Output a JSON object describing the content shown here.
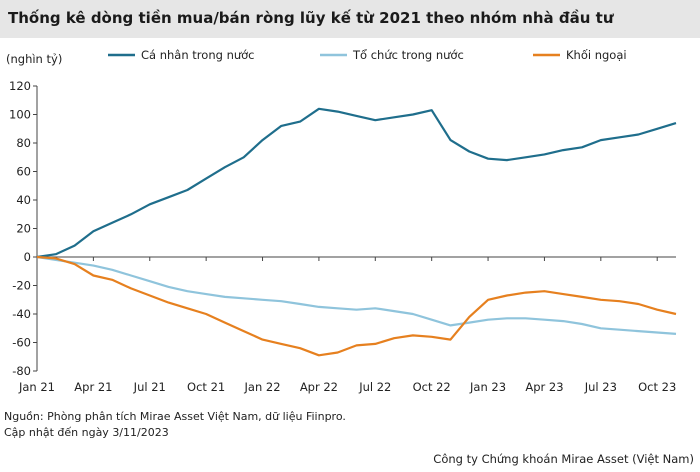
{
  "chart_data": {
    "type": "line",
    "title": "Thống kê dòng tiền mua/bán ròng lũy kế từ 2021 theo nhóm nhà đầu tư",
    "ylabel": "(nghìn tỷ)",
    "ylim": [
      -80,
      120
    ],
    "yticks": [
      "120",
      "100",
      "80",
      "60",
      "40",
      "20",
      "0",
      "-20",
      "-40",
      "-60",
      "-80"
    ],
    "xticks": [
      "Jan 21",
      "Apr 21",
      "Jul 21",
      "Oct 21",
      "Jan 22",
      "Apr 22",
      "Jul 22",
      "Oct 22",
      "Jan 23",
      "Apr 23",
      "Jul 23",
      "Oct 23"
    ],
    "legend_position": "top",
    "x": [
      "Jan 21",
      "Feb 21",
      "Mar 21",
      "Apr 21",
      "May 21",
      "Jun 21",
      "Jul 21",
      "Aug 21",
      "Sep 21",
      "Oct 21",
      "Nov 21",
      "Dec 21",
      "Jan 22",
      "Feb 22",
      "Mar 22",
      "Apr 22",
      "May 22",
      "Jun 22",
      "Jul 22",
      "Aug 22",
      "Sep 22",
      "Oct 22",
      "Nov 22",
      "Dec 22",
      "Jan 23",
      "Feb 23",
      "Mar 23",
      "Apr 23",
      "May 23",
      "Jun 23",
      "Jul 23",
      "Aug 23",
      "Sep 23",
      "Oct 23",
      "Nov 23"
    ],
    "series": [
      {
        "name": "Cá nhân trong nước",
        "color": "#1f6e8c",
        "values": [
          0,
          2,
          8,
          18,
          24,
          30,
          37,
          42,
          47,
          55,
          63,
          70,
          82,
          92,
          95,
          104,
          102,
          99,
          96,
          98,
          100,
          103,
          82,
          74,
          69,
          68,
          70,
          72,
          75,
          77,
          82,
          84,
          86,
          90,
          94
        ]
      },
      {
        "name": "Tổ chức trong nước",
        "color": "#8fc4dc",
        "values": [
          0,
          -2,
          -4,
          -6,
          -9,
          -13,
          -17,
          -21,
          -24,
          -26,
          -28,
          -29,
          -30,
          -31,
          -33,
          -35,
          -36,
          -37,
          -36,
          -38,
          -40,
          -44,
          -48,
          -46,
          -44,
          -43,
          -43,
          -44,
          -45,
          -47,
          -50,
          -51,
          -52,
          -53,
          -54
        ]
      },
      {
        "name": "Khối ngoại",
        "color": "#e6801f",
        "values": [
          0,
          -1,
          -5,
          -13,
          -16,
          -22,
          -27,
          -32,
          -36,
          -40,
          -46,
          -52,
          -58,
          -61,
          -64,
          -69,
          -67,
          -62,
          -61,
          -57,
          -55,
          -56,
          -58,
          -42,
          -30,
          -27,
          -25,
          -24,
          -26,
          -28,
          -30,
          -31,
          -33,
          -37,
          -40
        ]
      }
    ]
  },
  "footer": {
    "source": "Nguồn: Phòng phân tích Mirae Asset Việt Nam, dữ liệu Fiinpro.",
    "updated": "Cập nhật đến ngày 3/11/2023",
    "company": "Công ty Chứng khoán Mirae Asset (Việt Nam)"
  }
}
